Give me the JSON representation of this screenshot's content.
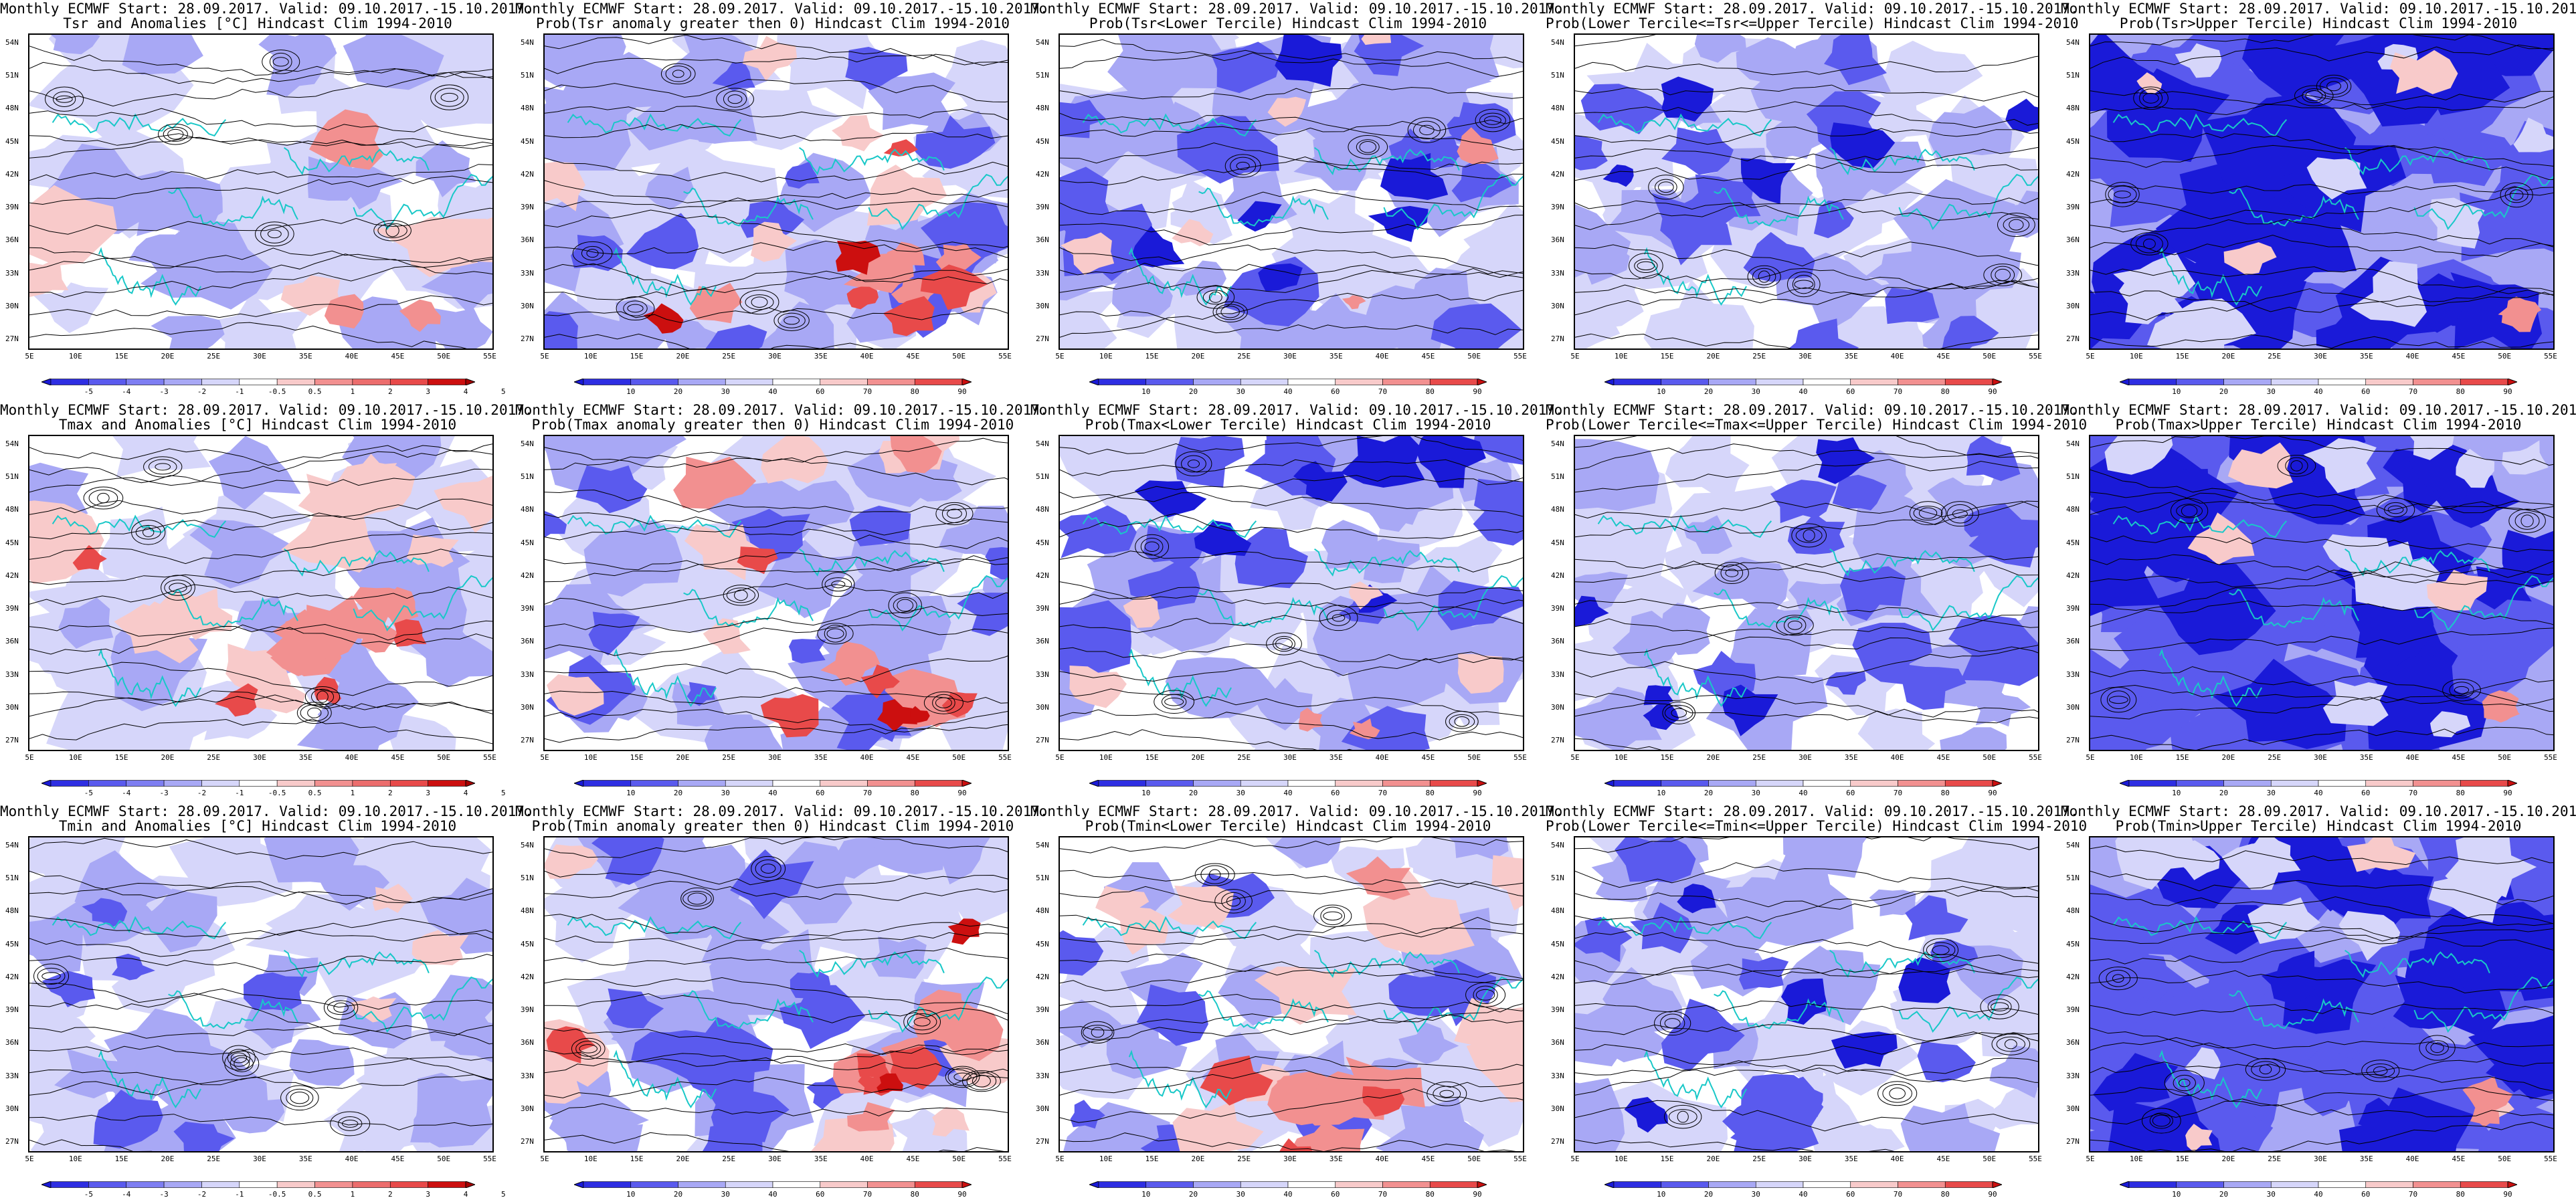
{
  "figure": {
    "header_line": "Monthly ECMWF Start: 28.09.2017. Valid: 09.10.2017.-15.10.2017.",
    "lat_labels": [
      "54N",
      "51N",
      "48N",
      "45N",
      "42N",
      "39N",
      "36N",
      "33N",
      "30N",
      "27N"
    ],
    "lon_labels": [
      "5E",
      "10E",
      "15E",
      "20E",
      "25E",
      "30E",
      "35E",
      "40E",
      "45E",
      "50E",
      "55E"
    ],
    "anomaly_colorbar_labels": [
      "-5",
      "-4",
      "-3",
      "-2",
      "-1",
      "-0.5",
      "0.5",
      "1",
      "2",
      "3",
      "4",
      "5"
    ],
    "probability_colorbar_labels": [
      "10",
      "20",
      "30",
      "40",
      "60",
      "70",
      "80",
      "90"
    ],
    "colors": {
      "deep_blue": "#1a1ad8",
      "mid_blue": "#5a5aee",
      "light_blue": "#a8a8f5",
      "pale_blue": "#d6d6fa",
      "pale_red": "#f8caca",
      "light_red": "#f29090",
      "mid_red": "#e84a4a",
      "deep_red": "#cc0f0f",
      "coastline": "#19c8c8",
      "contour": "#000000"
    }
  },
  "panels": [
    {
      "row": 0,
      "col": 0,
      "subtitle": "Tsr and Anomalies [°C] Hindcast Clim 1994-2010",
      "legend": "anomaly",
      "pattern": "anomaly-mild"
    },
    {
      "row": 0,
      "col": 1,
      "subtitle": "Prob(Tsr anomaly greater then 0) Hindcast Clim 1994-2010",
      "legend": "probability",
      "pattern": "blue-west-red-southeast"
    },
    {
      "row": 0,
      "col": 2,
      "subtitle": "Prob(Tsr<Lower Tercile) Hindcast Clim 1994-2010",
      "legend": "probability",
      "pattern": "blue-mixed"
    },
    {
      "row": 0,
      "col": 3,
      "subtitle": "Prob(Lower Tercile<=Tsr<=Upper Tercile) Hindcast Clim 1994-2010",
      "legend": "probability",
      "pattern": "blue-patchy"
    },
    {
      "row": 0,
      "col": 4,
      "subtitle": "Prob(Tsr>Upper Tercile) Hindcast Clim 1994-2010",
      "legend": "probability",
      "pattern": "blue-dominant"
    },
    {
      "row": 1,
      "col": 0,
      "subtitle": "Tmax and Anomalies [°C] Hindcast Clim 1994-2010",
      "legend": "anomaly",
      "pattern": "anomaly-warm-east"
    },
    {
      "row": 1,
      "col": 1,
      "subtitle": "Prob(Tmax anomaly greater then 0) Hindcast Clim 1994-2010",
      "legend": "probability",
      "pattern": "blue-west-red-southeast"
    },
    {
      "row": 1,
      "col": 2,
      "subtitle": "Prob(Tmax<Lower Tercile) Hindcast Clim 1994-2010",
      "legend": "probability",
      "pattern": "blue-mixed"
    },
    {
      "row": 1,
      "col": 3,
      "subtitle": "Prob(Lower Tercile<=Tmax<=Upper Tercile) Hindcast Clim 1994-2010",
      "legend": "probability",
      "pattern": "blue-patchy"
    },
    {
      "row": 1,
      "col": 4,
      "subtitle": "Prob(Tmax>Upper Tercile) Hindcast Clim 1994-2010",
      "legend": "probability",
      "pattern": "blue-dominant"
    },
    {
      "row": 2,
      "col": 0,
      "subtitle": "Tmin and Anomalies [°C] Hindcast Clim 1994-2010",
      "legend": "anomaly",
      "pattern": "anomaly-cool"
    },
    {
      "row": 2,
      "col": 1,
      "subtitle": "Prob(Tmin anomaly greater then 0) Hindcast Clim 1994-2010",
      "legend": "probability",
      "pattern": "blue-west-red-southeast"
    },
    {
      "row": 2,
      "col": 2,
      "subtitle": "Prob(Tmin<Lower Tercile) Hindcast Clim 1994-2010",
      "legend": "probability",
      "pattern": "red-south"
    },
    {
      "row": 2,
      "col": 3,
      "subtitle": "Prob(Lower Tercile<=Tmin<=Upper Tercile) Hindcast Clim 1994-2010",
      "legend": "probability",
      "pattern": "blue-patchy"
    },
    {
      "row": 2,
      "col": 4,
      "subtitle": "Prob(Tmin>Upper Tercile) Hindcast Clim 1994-2010",
      "legend": "probability",
      "pattern": "blue-dominant"
    }
  ]
}
